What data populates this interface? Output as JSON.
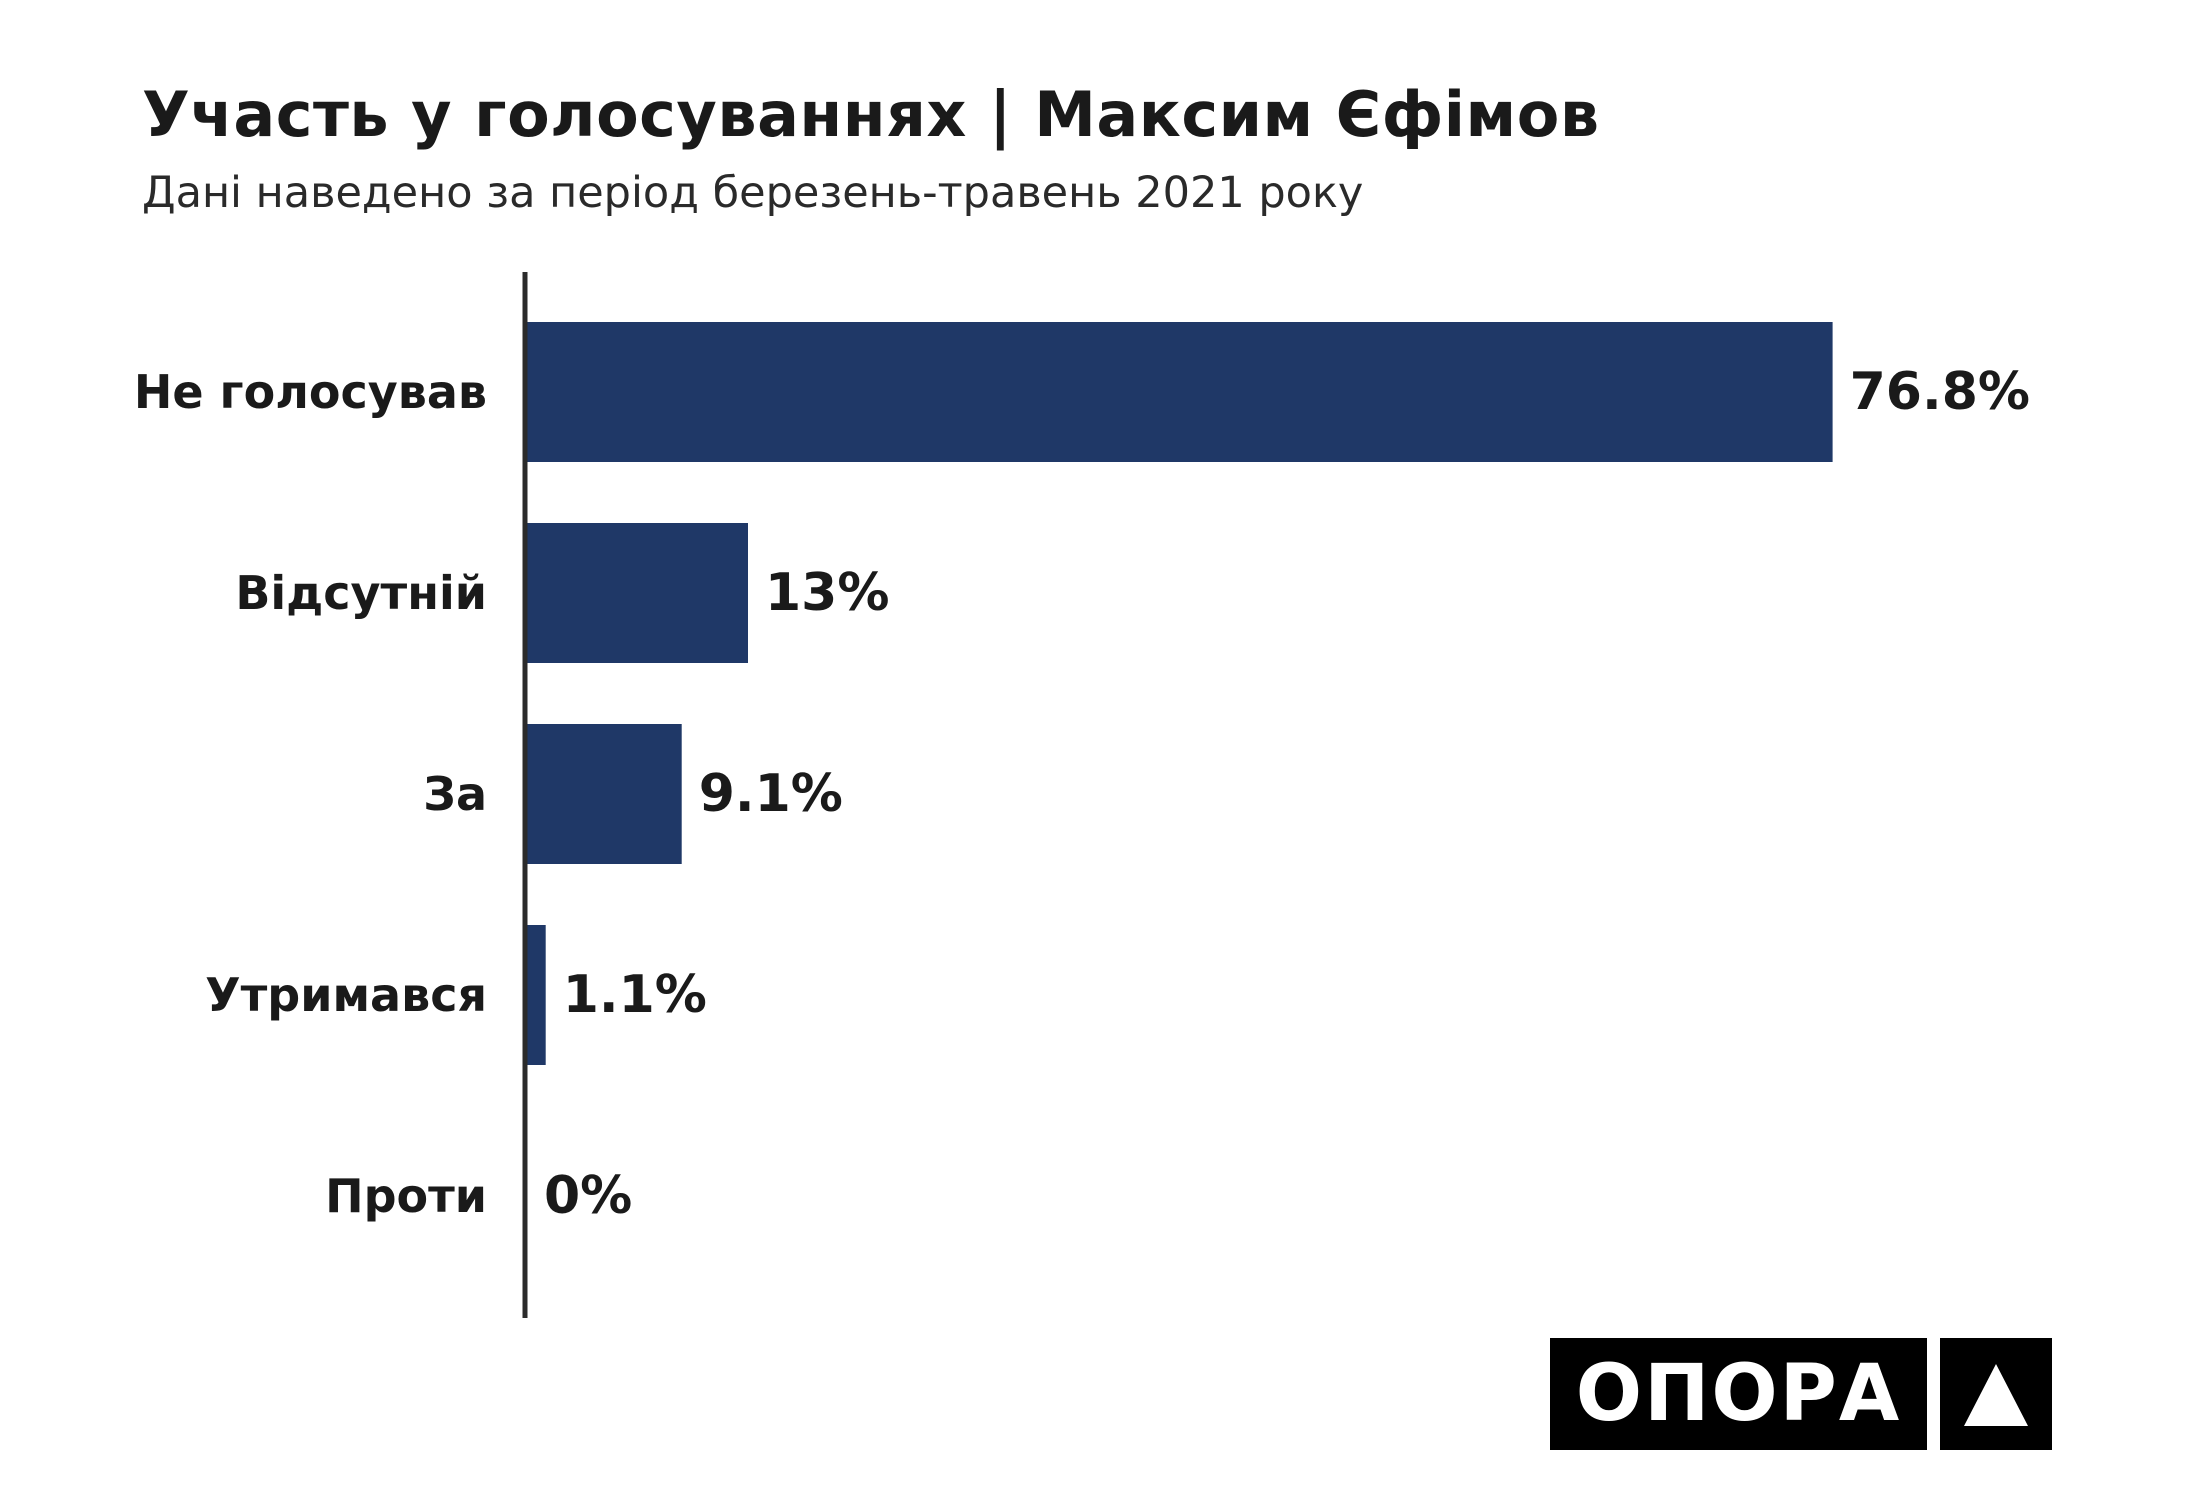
{
  "title": "Участь у голосуваннях | Максим Єфімов",
  "subtitle": "Дані наведено за період березень-травень 2021 року",
  "logo": {
    "text": "ОПОРА",
    "mark_icon": "triangle-icon"
  },
  "colors": {
    "bar": "#1f3867",
    "axis": "#2b2b2b",
    "text": "#1a1a1a"
  },
  "chart_data": {
    "type": "bar",
    "orientation": "horizontal",
    "title": "Участь у голосуваннях | Максим Єфімов",
    "subtitle": "Дані наведено за період березень-травень 2021 року",
    "categories": [
      "Не голосував",
      "Відсутній",
      "За",
      "Утримався",
      "Проти"
    ],
    "values": [
      76.8,
      13,
      9.1,
      1.1,
      0
    ],
    "value_labels": [
      "76.8%",
      "13%",
      "9.1%",
      "1.1%",
      "0%"
    ],
    "xlim": [
      0,
      100
    ],
    "grid": false,
    "legend": "none"
  }
}
